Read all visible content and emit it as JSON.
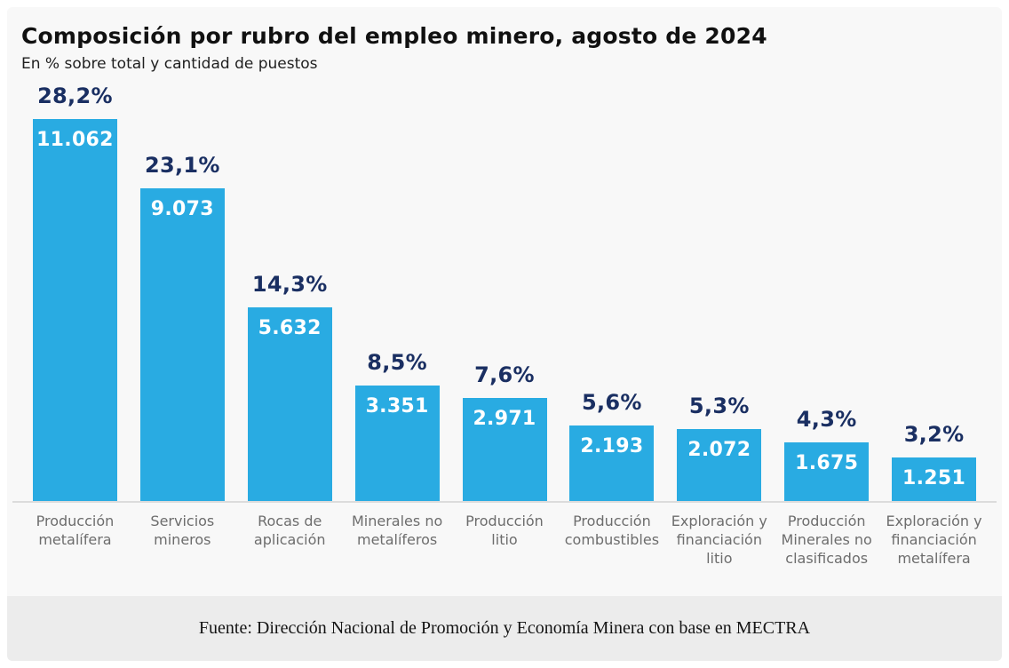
{
  "header": {
    "title": "Composición por rubro del empleo minero, agosto de 2024",
    "subtitle": "En % sobre total y cantidad de puestos"
  },
  "chart_data": {
    "type": "bar",
    "title": "Composición por rubro del empleo minero, agosto de 2024",
    "subtitle": "En % sobre total y cantidad de puestos",
    "categories": [
      "Producción metalífera",
      "Servicios mineros",
      "Rocas de aplicación",
      "Minerales no metalíferos",
      "Producción litio",
      "Producción combustibles",
      "Exploración y financiación litio",
      "Producción Minerales no clasificados",
      "Exploración y financiación metalífera"
    ],
    "pct_values": [
      28.2,
      23.1,
      14.3,
      8.5,
      7.6,
      5.6,
      5.3,
      4.3,
      3.2
    ],
    "pct_labels": [
      "28,2%",
      "23,1%",
      "14,3%",
      "8,5%",
      "7,6%",
      "5,6%",
      "5,3%",
      "4,3%",
      "3,2%"
    ],
    "count_values": [
      11062,
      9073,
      5632,
      3351,
      2971,
      2193,
      2072,
      1675,
      1251
    ],
    "count_labels": [
      "11.062",
      "9.073",
      "5.632",
      "3.351",
      "2.971",
      "2.193",
      "2.072",
      "1.675",
      "1.251"
    ],
    "ylim": [
      0,
      30
    ],
    "grid": false,
    "legend": "none",
    "bar_color": "#29abe2",
    "pct_label_color": "#1a2f62",
    "value_label_color": "#ffffff",
    "category_label_color": "#6d6d6d"
  },
  "footer": {
    "source": "Fuente: Dirección Nacional de Promoción y Economía Minera con base en MECTRA"
  }
}
